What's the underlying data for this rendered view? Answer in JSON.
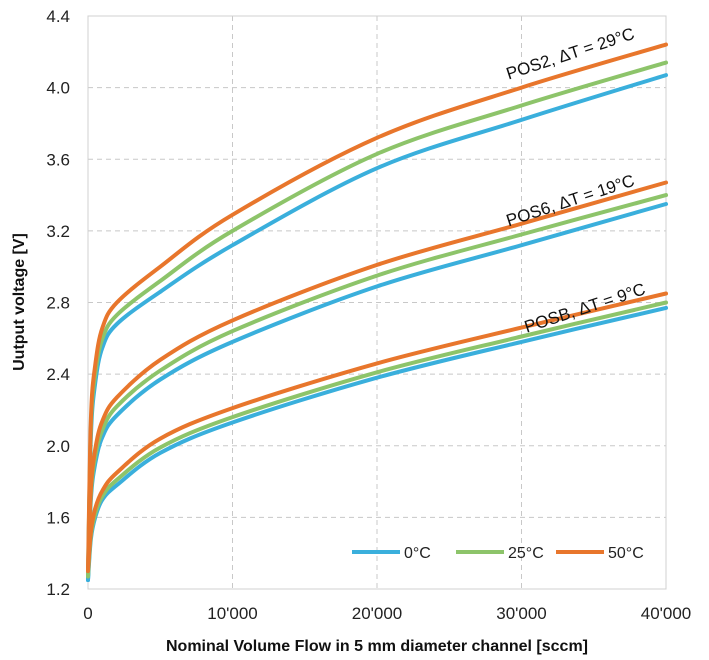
{
  "chart_data": {
    "type": "line",
    "title": "",
    "xlabel": "Nominal Volume Flow in 5 mm diameter channel [sccm]",
    "ylabel": "Uutput voltage [V]",
    "xlim": [
      0,
      40000
    ],
    "ylim": [
      1.2,
      4.4
    ],
    "x_ticks": [
      0,
      10000,
      20000,
      30000,
      40000
    ],
    "x_tick_labels": [
      "0",
      "10'000",
      "20'000",
      "30'000",
      "40'000"
    ],
    "y_ticks": [
      1.2,
      1.6,
      2.0,
      2.4,
      2.8,
      3.2,
      3.6,
      4.0,
      4.4
    ],
    "y_tick_labels": [
      "1.2",
      "1.6",
      "2.0",
      "2.4",
      "2.8",
      "3.2",
      "3.6",
      "4.0",
      "4.4"
    ],
    "grid": true,
    "legend_position": "bottom-right",
    "legend": [
      {
        "label": "0°C",
        "color": "#3AAFDC"
      },
      {
        "label": "25°C",
        "color": "#8DC46A"
      },
      {
        "label": "50°C",
        "color": "#E8762C"
      }
    ],
    "x": [
      0,
      200,
      500,
      1000,
      2000,
      5000,
      10000,
      20000,
      30000,
      40000
    ],
    "series": [
      {
        "group": "POS2",
        "temperature": "0°C",
        "color": "#3AAFDC",
        "values": [
          1.25,
          2.05,
          2.35,
          2.55,
          2.68,
          2.86,
          3.12,
          3.55,
          3.82,
          4.07
        ]
      },
      {
        "group": "POS2",
        "temperature": "25°C",
        "color": "#8DC46A",
        "values": [
          1.27,
          2.1,
          2.4,
          2.6,
          2.73,
          2.92,
          3.2,
          3.63,
          3.9,
          4.14
        ]
      },
      {
        "group": "POS2",
        "temperature": "50°C",
        "color": "#E8762C",
        "values": [
          1.3,
          2.15,
          2.45,
          2.66,
          2.8,
          3.0,
          3.29,
          3.72,
          4.0,
          4.24
        ]
      },
      {
        "group": "POS6",
        "temperature": "0°C",
        "color": "#3AAFDC",
        "values": [
          1.25,
          1.7,
          1.9,
          2.05,
          2.17,
          2.37,
          2.58,
          2.89,
          3.12,
          3.35
        ]
      },
      {
        "group": "POS6",
        "temperature": "25°C",
        "color": "#8DC46A",
        "values": [
          1.27,
          1.73,
          1.94,
          2.09,
          2.22,
          2.42,
          2.64,
          2.95,
          3.18,
          3.4
        ]
      },
      {
        "group": "POS6",
        "temperature": "50°C",
        "color": "#E8762C",
        "values": [
          1.3,
          1.76,
          1.98,
          2.14,
          2.27,
          2.48,
          2.7,
          3.01,
          3.24,
          3.47
        ]
      },
      {
        "group": "POSB",
        "temperature": "0°C",
        "color": "#3AAFDC",
        "values": [
          1.25,
          1.48,
          1.6,
          1.7,
          1.78,
          1.96,
          2.13,
          2.38,
          2.58,
          2.77
        ]
      },
      {
        "group": "POSB",
        "temperature": "25°C",
        "color": "#8DC46A",
        "values": [
          1.27,
          1.5,
          1.62,
          1.72,
          1.81,
          1.99,
          2.16,
          2.41,
          2.61,
          2.8
        ]
      },
      {
        "group": "POSB",
        "temperature": "50°C",
        "color": "#E8762C",
        "values": [
          1.3,
          1.52,
          1.65,
          1.75,
          1.85,
          2.04,
          2.21,
          2.46,
          2.66,
          2.85
        ]
      }
    ],
    "annotations": [
      {
        "text": "POS2, ΔT = 29°C",
        "x": 33500,
        "y": 4.16
      },
      {
        "text": "POS6, ΔT = 19°C",
        "x": 33500,
        "y": 3.34
      },
      {
        "text": "POSB, ΔT = 9°C",
        "x": 34500,
        "y": 2.74
      }
    ]
  }
}
